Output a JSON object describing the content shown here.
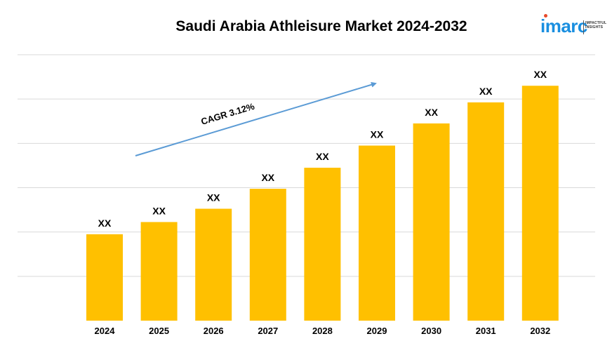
{
  "title": "Saudi Arabia Athleisure Market 2024-2032",
  "logo": {
    "word": "imarc",
    "tagline_line1": "IMPACTFUL",
    "tagline_line2": "INSIGHTS"
  },
  "colors": {
    "bar": "#FFC000",
    "grid": "#d9d9d9",
    "arrow": "#5b9bd5",
    "logo": "#1a8fe0"
  },
  "chart_data": {
    "type": "bar",
    "title": "Saudi Arabia Athleisure Market 2024-2032",
    "categories": [
      "2024",
      "2025",
      "2026",
      "2027",
      "2028",
      "2029",
      "2030",
      "2031",
      "2032"
    ],
    "values": [
      39.0,
      44.5,
      50.5,
      59.5,
      69.0,
      79.0,
      89.0,
      98.5,
      106.0
    ],
    "data_labels": [
      "XX",
      "XX",
      "XX",
      "XX",
      "XX",
      "XX",
      "XX",
      "XX",
      "XX"
    ],
    "ylim": [
      0,
      120
    ],
    "grid": true,
    "annotation": {
      "text": "CAGR 3.12%",
      "type": "trend-arrow"
    }
  }
}
